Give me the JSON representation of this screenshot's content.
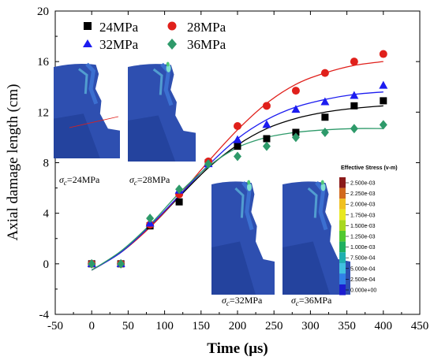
{
  "chart_data": {
    "type": "scatter",
    "xlabel": "Time (μs)",
    "ylabel": "Axial damage length (cm)",
    "xlim": [
      -50,
      450
    ],
    "ylim": [
      -4,
      20
    ],
    "x_ticks": [
      "-50",
      "0",
      "50",
      "100",
      "150",
      "200",
      "250",
      "300",
      "350",
      "400",
      "450"
    ],
    "y_ticks": [
      "-4",
      "0",
      "4",
      "8",
      "12",
      "16",
      "20"
    ],
    "x": [
      0,
      40,
      80,
      120,
      160,
      200,
      240,
      280,
      320,
      360,
      400
    ],
    "series": [
      {
        "name": "24MPa",
        "marker": "square",
        "color": "#000000",
        "values": [
          0,
          0,
          3.0,
          4.9,
          8.0,
          9.3,
          9.9,
          10.4,
          11.6,
          12.5,
          12.9
        ]
      },
      {
        "name": "28MPa",
        "marker": "circle",
        "color": "#e0201b",
        "values": [
          0,
          0,
          3.1,
          5.5,
          8.1,
          10.9,
          12.5,
          13.7,
          15.1,
          16.0,
          16.6
        ]
      },
      {
        "name": "32MPa",
        "marker": "triangle",
        "color": "#1c1cf0",
        "values": [
          0,
          0,
          3.2,
          5.8,
          7.9,
          9.8,
          11.0,
          12.2,
          12.8,
          13.3,
          14.1
        ]
      },
      {
        "name": "36MPa",
        "marker": "diamond",
        "color": "#2e9a6a",
        "values": [
          0,
          0,
          3.6,
          5.9,
          7.9,
          8.5,
          9.3,
          10.0,
          10.4,
          10.7,
          11.0
        ]
      }
    ],
    "fits": [
      {
        "series": "24MPa",
        "color": "#000000",
        "values": [
          -0.5,
          0.9,
          2.9,
          5.3,
          7.6,
          9.4,
          10.7,
          11.5,
          12.0,
          12.3,
          12.5
        ]
      },
      {
        "series": "28MPa",
        "color": "#e0201b",
        "values": [
          -0.5,
          0.9,
          2.9,
          5.4,
          8.1,
          10.6,
          12.7,
          14.2,
          15.1,
          15.7,
          16.0
        ]
      },
      {
        "series": "32MPa",
        "color": "#1c1cf0",
        "values": [
          -0.5,
          0.9,
          3.0,
          5.4,
          7.8,
          9.9,
          11.4,
          12.4,
          13.0,
          13.4,
          13.6
        ]
      },
      {
        "series": "36MPa",
        "color": "#2e9a6a",
        "values": [
          -0.5,
          1.0,
          3.1,
          5.6,
          7.7,
          9.2,
          10.0,
          10.4,
          10.6,
          10.7,
          10.7
        ]
      }
    ],
    "legend": {
      "placement": "top-left",
      "columns": 2
    }
  },
  "insets": [
    {
      "label_main": "σ",
      "label_sub": "c",
      "label_rest": "=24MPa"
    },
    {
      "label_main": "σ",
      "label_sub": "c",
      "label_rest": "=28MPa"
    },
    {
      "label_main": "σ",
      "label_sub": "c",
      "label_rest": "=32MPa"
    },
    {
      "label_main": "σ",
      "label_sub": "c",
      "label_rest": "=36MPa"
    }
  ],
  "colorbar": {
    "title": "Effective Stress (v-m)",
    "labels": [
      "2.500e-03",
      "2.250e-03",
      "2.000e-03",
      "1.750e-03",
      "1.500e-03",
      "1.250e-03",
      "1.000e-03",
      "7.500e-04",
      "5.000e-04",
      "2.500e-04",
      "0.000e+00"
    ],
    "colors": [
      "#8b1a1a",
      "#d2691e",
      "#f0c020",
      "#e8e820",
      "#a8d820",
      "#50c830",
      "#20b060",
      "#20b0b0",
      "#40c0e0",
      "#3080e8",
      "#1c1cd0"
    ]
  },
  "fem_colors": {
    "base": "#2e4fb0",
    "dark": "#1e3a90",
    "mid": "#3b6fd0",
    "light": "#5ab0d8",
    "cyan": "#7fe0d0",
    "green": "#50c878"
  }
}
